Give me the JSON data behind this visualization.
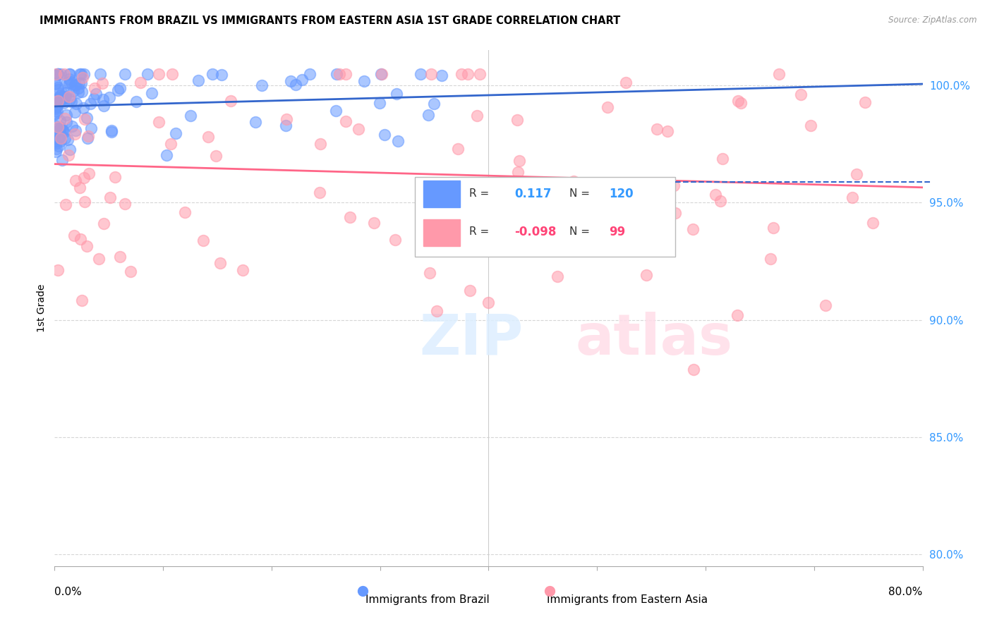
{
  "title": "IMMIGRANTS FROM BRAZIL VS IMMIGRANTS FROM EASTERN ASIA 1ST GRADE CORRELATION CHART",
  "source": "Source: ZipAtlas.com",
  "ylabel": "1st Grade",
  "xlim": [
    0.0,
    80.0
  ],
  "ylim": [
    79.5,
    101.5
  ],
  "yticks": [
    80.0,
    85.0,
    90.0,
    95.0,
    100.0
  ],
  "ytick_labels": [
    "80.0%",
    "85.0%",
    "90.0%",
    "95.0%",
    "100.0%"
  ],
  "brazil_color": "#6699FF",
  "eastern_asia_color": "#FF99AA",
  "brazil_line_color": "#3366CC",
  "eastern_asia_line_color": "#FF6688",
  "brazil_R": 0.117,
  "brazil_N": 120,
  "eastern_asia_R": -0.098,
  "eastern_asia_N": 99,
  "legend_label_brazil": "Immigrants from Brazil",
  "legend_label_eastern_asia": "Immigrants from Eastern Asia"
}
